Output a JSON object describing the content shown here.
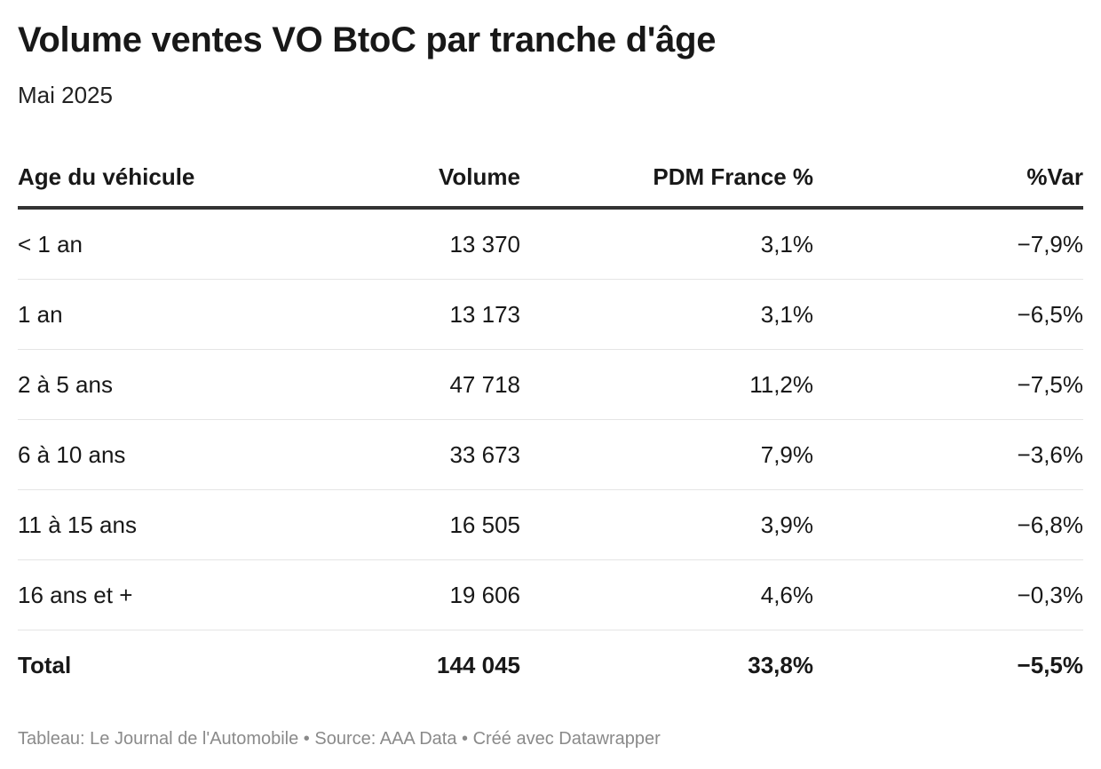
{
  "title": "Volume ventes VO BtoC par tranche d'âge",
  "subtitle": "Mai 2025",
  "footer": "Tableau: Le Journal de l'Automobile • Source: AAA Data • Créé avec Datawrapper",
  "chart_data": {
    "type": "table",
    "title": "Volume ventes VO BtoC par tranche d'âge",
    "subtitle": "Mai 2025",
    "columns": [
      "Age du véhicule",
      "Volume",
      "PDM France %",
      "%Var"
    ],
    "rows": [
      [
        "< 1 an",
        "13 370",
        "3,1%",
        "−7,9%"
      ],
      [
        "1 an",
        "13 173",
        "3,1%",
        "−6,5%"
      ],
      [
        "2 à 5 ans",
        "47 718",
        "11,2%",
        "−7,5%"
      ],
      [
        "6 à 10 ans",
        "33 673",
        "7,9%",
        "−3,6%"
      ],
      [
        "11 à 15 ans",
        "16 505",
        "3,9%",
        "−6,8%"
      ],
      [
        "16 ans et +",
        "19 606",
        "4,6%",
        "−0,3%"
      ]
    ],
    "total": [
      "Total",
      "144 045",
      "33,8%",
      "−5,5%"
    ]
  }
}
